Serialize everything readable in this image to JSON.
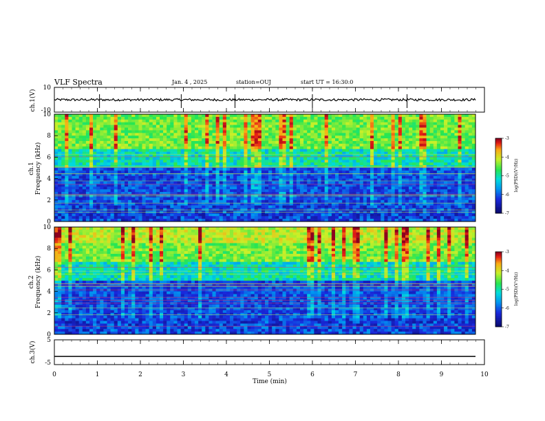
{
  "header": {
    "title": "VLF Spectra",
    "date": "Jan. 4 , 2025",
    "station": "station=OUJ",
    "start": "start UT = 16:30:0"
  },
  "chart_data": [
    {
      "type": "line",
      "panel": "ch1-waveform",
      "ylabel": "ch.1(V)",
      "ylim": [
        -10,
        10
      ],
      "yticks": [
        "10",
        "-10"
      ],
      "xlim": [
        0,
        10
      ],
      "description_values": {
        "baseline_V": 0.0,
        "amplitude_V": 1.5,
        "spikes_at_min": [
          1.05,
          2.95,
          4.2,
          6.0,
          8.2
        ]
      }
    },
    {
      "type": "heatmap",
      "panel": "ch1-spectrogram",
      "ylabel": "ch.1 Frequency (kHz)",
      "ylim": [
        0,
        10
      ],
      "yticks": [
        "0",
        "2",
        "4",
        "6",
        "8",
        "10"
      ],
      "xlim": [
        0,
        10
      ],
      "colorbar": {
        "label": "log(PSD)(V²/Hz)",
        "range": [
          -7,
          -3
        ],
        "ticks": [
          "-3",
          "-4",
          "-5",
          "-6",
          "-7"
        ]
      }
    },
    {
      "type": "heatmap",
      "panel": "ch2-spectrogram",
      "ylabel": "ch.2 Frequency (kHz)",
      "ylim": [
        0,
        10
      ],
      "yticks": [
        "0",
        "2",
        "4",
        "6",
        "8",
        "10"
      ],
      "xlim": [
        0,
        10
      ],
      "colorbar": {
        "label": "log(PSD)(V²/Hz)",
        "range": [
          -7,
          -3
        ],
        "ticks": [
          "-3",
          "-4",
          "-5",
          "-6",
          "-7"
        ]
      }
    },
    {
      "type": "line",
      "panel": "ch3-waveform",
      "ylabel": "ch.3(V)",
      "ylim": [
        -5,
        5
      ],
      "yticks": [
        "5",
        "-5"
      ],
      "xlim": [
        0,
        10
      ],
      "description_values": {
        "constant_V": -1.7
      }
    }
  ],
  "xaxis": {
    "label": "Time (min)",
    "ticks": [
      "0",
      "1",
      "2",
      "3",
      "4",
      "5",
      "6",
      "7",
      "8",
      "9",
      "10"
    ]
  }
}
